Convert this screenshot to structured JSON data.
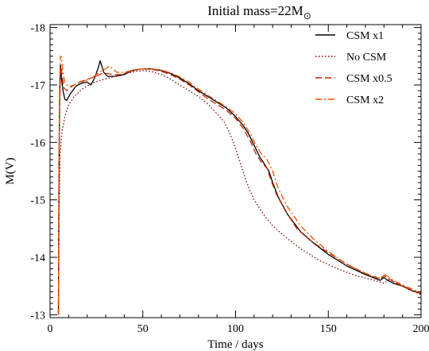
{
  "chart_data": {
    "type": "line",
    "title": "Initial mass=22M",
    "title_subscript": "⊙",
    "xlabel": "Time / days",
    "ylabel": "M(V)",
    "xlim": [
      0,
      200
    ],
    "ylim": [
      -12.95,
      -18.05
    ],
    "y_inverted": true,
    "x_ticks": [
      0,
      50,
      100,
      150,
      200
    ],
    "y_ticks": [
      -18,
      -17,
      -16,
      -15,
      -14,
      -13
    ],
    "legend_position": "top-right",
    "grid": false,
    "series": [
      {
        "name": "CSM x1",
        "color": "#000000",
        "dash": "solid",
        "points": [
          [
            4.5,
            -13.0
          ],
          [
            4.8,
            -15.5
          ],
          [
            5.2,
            -16.8
          ],
          [
            5.6,
            -17.35
          ],
          [
            6.2,
            -17.1
          ],
          [
            7,
            -16.9
          ],
          [
            8,
            -16.75
          ],
          [
            9,
            -16.73
          ],
          [
            11,
            -16.85
          ],
          [
            14,
            -16.98
          ],
          [
            17,
            -17.03
          ],
          [
            20,
            -17.05
          ],
          [
            22,
            -17.0
          ],
          [
            24,
            -17.12
          ],
          [
            26,
            -17.3
          ],
          [
            27,
            -17.42
          ],
          [
            28,
            -17.32
          ],
          [
            29,
            -17.22
          ],
          [
            31,
            -17.15
          ],
          [
            35,
            -17.15
          ],
          [
            40,
            -17.18
          ],
          [
            45,
            -17.26
          ],
          [
            50,
            -17.28
          ],
          [
            55,
            -17.28
          ],
          [
            60,
            -17.25
          ],
          [
            65,
            -17.2
          ],
          [
            70,
            -17.12
          ],
          [
            75,
            -17.02
          ],
          [
            80,
            -16.9
          ],
          [
            85,
            -16.8
          ],
          [
            90,
            -16.7
          ],
          [
            95,
            -16.6
          ],
          [
            100,
            -16.45
          ],
          [
            104,
            -16.3
          ],
          [
            107,
            -16.15
          ],
          [
            110,
            -15.95
          ],
          [
            113,
            -15.75
          ],
          [
            116,
            -15.6
          ],
          [
            118,
            -15.5
          ],
          [
            120,
            -15.3
          ],
          [
            123,
            -15.05
          ],
          [
            128,
            -14.75
          ],
          [
            135,
            -14.45
          ],
          [
            142,
            -14.25
          ],
          [
            150,
            -14.05
          ],
          [
            160,
            -13.85
          ],
          [
            170,
            -13.7
          ],
          [
            178,
            -13.6
          ],
          [
            180,
            -13.65
          ],
          [
            182,
            -13.6
          ],
          [
            185,
            -13.55
          ],
          [
            190,
            -13.5
          ],
          [
            195,
            -13.42
          ],
          [
            200,
            -13.37
          ]
        ]
      },
      {
        "name": "No CSM",
        "color": "#800000",
        "dash": "dot",
        "points": [
          [
            4.5,
            -13.0
          ],
          [
            5,
            -15.0
          ],
          [
            5.5,
            -15.8
          ],
          [
            6.5,
            -16.2
          ],
          [
            8,
            -16.45
          ],
          [
            10,
            -16.65
          ],
          [
            13,
            -16.8
          ],
          [
            17,
            -16.92
          ],
          [
            22,
            -17.02
          ],
          [
            27,
            -17.08
          ],
          [
            32,
            -17.12
          ],
          [
            37,
            -17.17
          ],
          [
            42,
            -17.21
          ],
          [
            47,
            -17.24
          ],
          [
            50,
            -17.25
          ],
          [
            55,
            -17.23
          ],
          [
            60,
            -17.18
          ],
          [
            65,
            -17.1
          ],
          [
            70,
            -17.0
          ],
          [
            75,
            -16.9
          ],
          [
            80,
            -16.8
          ],
          [
            85,
            -16.67
          ],
          [
            90,
            -16.5
          ],
          [
            94,
            -16.35
          ],
          [
            97,
            -16.15
          ],
          [
            100,
            -15.9
          ],
          [
            103,
            -15.6
          ],
          [
            106,
            -15.3
          ],
          [
            110,
            -15.0
          ],
          [
            115,
            -14.75
          ],
          [
            120,
            -14.55
          ],
          [
            127,
            -14.35
          ],
          [
            135,
            -14.15
          ],
          [
            145,
            -13.95
          ],
          [
            155,
            -13.8
          ],
          [
            165,
            -13.68
          ],
          [
            175,
            -13.6
          ],
          [
            180,
            -13.55
          ],
          [
            183,
            -13.62
          ],
          [
            186,
            -13.56
          ],
          [
            190,
            -13.5
          ],
          [
            195,
            -13.42
          ],
          [
            200,
            -13.35
          ]
        ]
      },
      {
        "name": "CSM x0.5",
        "color": "#cc2200",
        "dash": "dash",
        "points": [
          [
            4.5,
            -13.0
          ],
          [
            4.8,
            -15.2
          ],
          [
            5.2,
            -16.6
          ],
          [
            5.6,
            -17.2
          ],
          [
            6,
            -17.3
          ],
          [
            6.5,
            -17.15
          ],
          [
            7.5,
            -16.95
          ],
          [
            9,
            -16.9
          ],
          [
            12,
            -16.98
          ],
          [
            16,
            -17.05
          ],
          [
            20,
            -17.1
          ],
          [
            25,
            -17.15
          ],
          [
            28,
            -17.2
          ],
          [
            31,
            -17.2
          ],
          [
            34,
            -17.18
          ],
          [
            38,
            -17.18
          ],
          [
            42,
            -17.22
          ],
          [
            46,
            -17.26
          ],
          [
            50,
            -17.28
          ],
          [
            55,
            -17.27
          ],
          [
            60,
            -17.24
          ],
          [
            65,
            -17.18
          ],
          [
            70,
            -17.1
          ],
          [
            75,
            -17.0
          ],
          [
            80,
            -16.88
          ],
          [
            85,
            -16.76
          ],
          [
            90,
            -16.66
          ],
          [
            95,
            -16.56
          ],
          [
            100,
            -16.42
          ],
          [
            104,
            -16.25
          ],
          [
            108,
            -16.02
          ],
          [
            111,
            -15.8
          ],
          [
            114,
            -15.65
          ],
          [
            117,
            -15.55
          ],
          [
            119,
            -15.35
          ],
          [
            122,
            -15.1
          ],
          [
            127,
            -14.8
          ],
          [
            133,
            -14.5
          ],
          [
            140,
            -14.3
          ],
          [
            150,
            -14.08
          ],
          [
            160,
            -13.88
          ],
          [
            170,
            -13.72
          ],
          [
            178,
            -13.62
          ],
          [
            180,
            -13.68
          ],
          [
            182,
            -13.64
          ],
          [
            185,
            -13.58
          ],
          [
            190,
            -13.5
          ],
          [
            195,
            -13.43
          ],
          [
            200,
            -13.37
          ]
        ]
      },
      {
        "name": "CSM x2",
        "color": "#ee5500",
        "dash": "dashdot",
        "points": [
          [
            4.5,
            -13.0
          ],
          [
            4.8,
            -15.8
          ],
          [
            5.2,
            -17.1
          ],
          [
            5.6,
            -17.5
          ],
          [
            6.2,
            -17.48
          ],
          [
            7,
            -17.2
          ],
          [
            8,
            -17.05
          ],
          [
            10,
            -16.97
          ],
          [
            13,
            -17.0
          ],
          [
            17,
            -17.05
          ],
          [
            21,
            -17.1
          ],
          [
            25,
            -17.18
          ],
          [
            28,
            -17.25
          ],
          [
            30,
            -17.28
          ],
          [
            32,
            -17.33
          ],
          [
            34,
            -17.28
          ],
          [
            36,
            -17.22
          ],
          [
            40,
            -17.22
          ],
          [
            45,
            -17.26
          ],
          [
            50,
            -17.28
          ],
          [
            55,
            -17.28
          ],
          [
            60,
            -17.26
          ],
          [
            65,
            -17.21
          ],
          [
            70,
            -17.14
          ],
          [
            75,
            -17.05
          ],
          [
            80,
            -16.93
          ],
          [
            85,
            -16.82
          ],
          [
            90,
            -16.72
          ],
          [
            95,
            -16.62
          ],
          [
            100,
            -16.5
          ],
          [
            104,
            -16.35
          ],
          [
            108,
            -16.15
          ],
          [
            111,
            -15.95
          ],
          [
            114,
            -15.8
          ],
          [
            117,
            -15.7
          ],
          [
            120,
            -15.5
          ],
          [
            123,
            -15.2
          ],
          [
            128,
            -14.88
          ],
          [
            135,
            -14.55
          ],
          [
            142,
            -14.32
          ],
          [
            150,
            -14.1
          ],
          [
            160,
            -13.88
          ],
          [
            170,
            -13.72
          ],
          [
            178,
            -13.63
          ],
          [
            180,
            -13.7
          ],
          [
            182,
            -13.67
          ],
          [
            185,
            -13.6
          ],
          [
            190,
            -13.52
          ],
          [
            195,
            -13.45
          ],
          [
            200,
            -13.38
          ]
        ]
      }
    ]
  }
}
